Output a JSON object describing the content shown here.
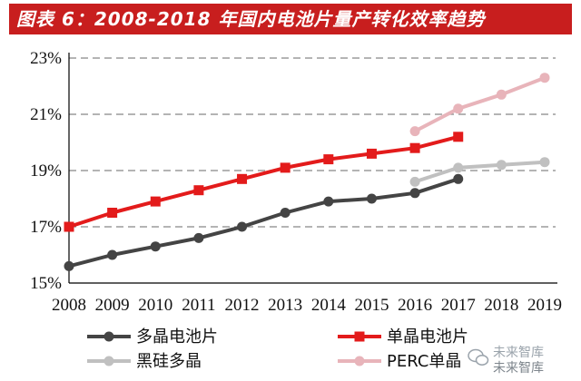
{
  "header": {
    "title": "图表 6：2008-2018 年国内电池片量产转化效率趋势"
  },
  "watermark": {
    "line1": "未来智库",
    "line2": "未来智库"
  },
  "colors": {
    "series_multi": "#444444",
    "series_mono": "#e31b1b",
    "series_black": "#c0c0c0",
    "series_perc": "#e8b4ba",
    "gridline": "#888888",
    "axis": "#000000",
    "title_bg": "#c81e1e"
  },
  "chart_data": {
    "type": "line",
    "title": "图表 6：2008-2018 年国内电池片量产转化效率趋势",
    "xlabel": "",
    "ylabel": "",
    "categories": [
      "2008",
      "2009",
      "2010",
      "2011",
      "2012",
      "2013",
      "2014",
      "2015",
      "2016",
      "2017",
      "2018",
      "2019"
    ],
    "ylim": [
      15,
      23
    ],
    "yticks": [
      15,
      17,
      19,
      21,
      23
    ],
    "ytick_labels": [
      "15%",
      "17%",
      "19%",
      "21%",
      "23%"
    ],
    "grid": "horizontal dashed",
    "legend_position": "bottom",
    "series": [
      {
        "name": "多晶电池片",
        "color": "#444444",
        "marker": "circle",
        "values": [
          15.6,
          16.0,
          16.3,
          16.6,
          17.0,
          17.5,
          17.9,
          18.0,
          18.2,
          18.7,
          null,
          null
        ]
      },
      {
        "name": "单晶电池片",
        "color": "#e31b1b",
        "marker": "square",
        "values": [
          17.0,
          17.5,
          17.9,
          18.3,
          18.7,
          19.1,
          19.4,
          19.6,
          19.8,
          20.2,
          null,
          null
        ]
      },
      {
        "name": "黑硅多晶",
        "color": "#c0c0c0",
        "marker": "circle",
        "values": [
          null,
          null,
          null,
          null,
          null,
          null,
          null,
          null,
          18.6,
          19.1,
          19.2,
          19.3
        ]
      },
      {
        "name": "PERC单晶",
        "color": "#e8b4ba",
        "marker": "circle",
        "values": [
          null,
          null,
          null,
          null,
          null,
          null,
          null,
          null,
          20.4,
          21.2,
          21.7,
          22.3
        ]
      }
    ]
  }
}
